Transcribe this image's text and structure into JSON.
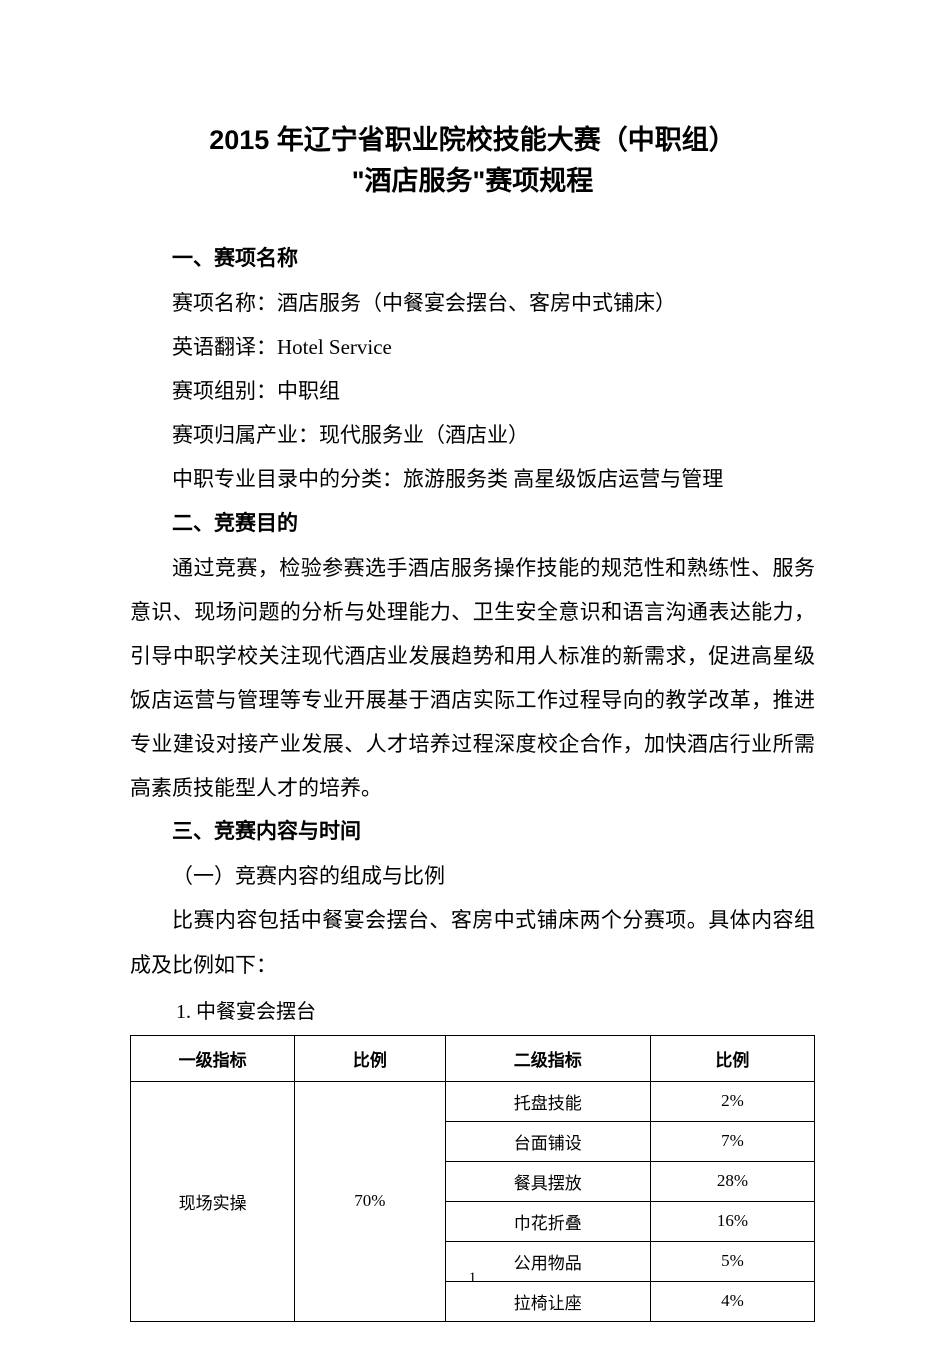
{
  "title_line1": "2015 年辽宁省职业院校技能大赛（中职组）",
  "title_line2": "\"酒店服务\"赛项规程",
  "section1": {
    "heading": "一、赛项名称",
    "line1": "赛项名称：酒店服务（中餐宴会摆台、客房中式铺床）",
    "line2": "英语翻译：Hotel  Service",
    "line3": "赛项组别：中职组",
    "line4": "赛项归属产业：现代服务业（酒店业）",
    "line5": "中职专业目录中的分类：旅游服务类  高星级饭店运营与管理"
  },
  "section2": {
    "heading": "二、竞赛目的",
    "para": "通过竞赛，检验参赛选手酒店服务操作技能的规范性和熟练性、服务意识、现场问题的分析与处理能力、卫生安全意识和语言沟通表达能力，引导中职学校关注现代酒店业发展趋势和用人标准的新需求，促进高星级饭店运营与管理等专业开展基于酒店实际工作过程导向的教学改革，推进专业建设对接产业发展、人才培养过程深度校企合作，加快酒店行业所需高素质技能型人才的培养。"
  },
  "section3": {
    "heading": "三、竞赛内容与时间",
    "sub1": "（一）竞赛内容的组成与比例",
    "para": "比赛内容包括中餐宴会摆台、客房中式铺床两个分赛项。具体内容组成及比例如下：",
    "table_caption": "1. 中餐宴会摆台"
  },
  "table": {
    "headers": [
      "一级指标",
      "比例",
      "二级指标",
      "比例"
    ],
    "primary": {
      "label": "现场实操",
      "ratio": "70%"
    },
    "rows": [
      {
        "label": "托盘技能",
        "ratio": "2%"
      },
      {
        "label": "台面铺设",
        "ratio": "7%"
      },
      {
        "label": "餐具摆放",
        "ratio": "28%"
      },
      {
        "label": "巾花折叠",
        "ratio": "16%"
      },
      {
        "label": "公用物品",
        "ratio": "5%"
      },
      {
        "label": "拉椅让座",
        "ratio": "4%"
      }
    ]
  },
  "page_number": "1",
  "colors": {
    "background": "#ffffff",
    "text": "#000000",
    "border": "#000000"
  }
}
